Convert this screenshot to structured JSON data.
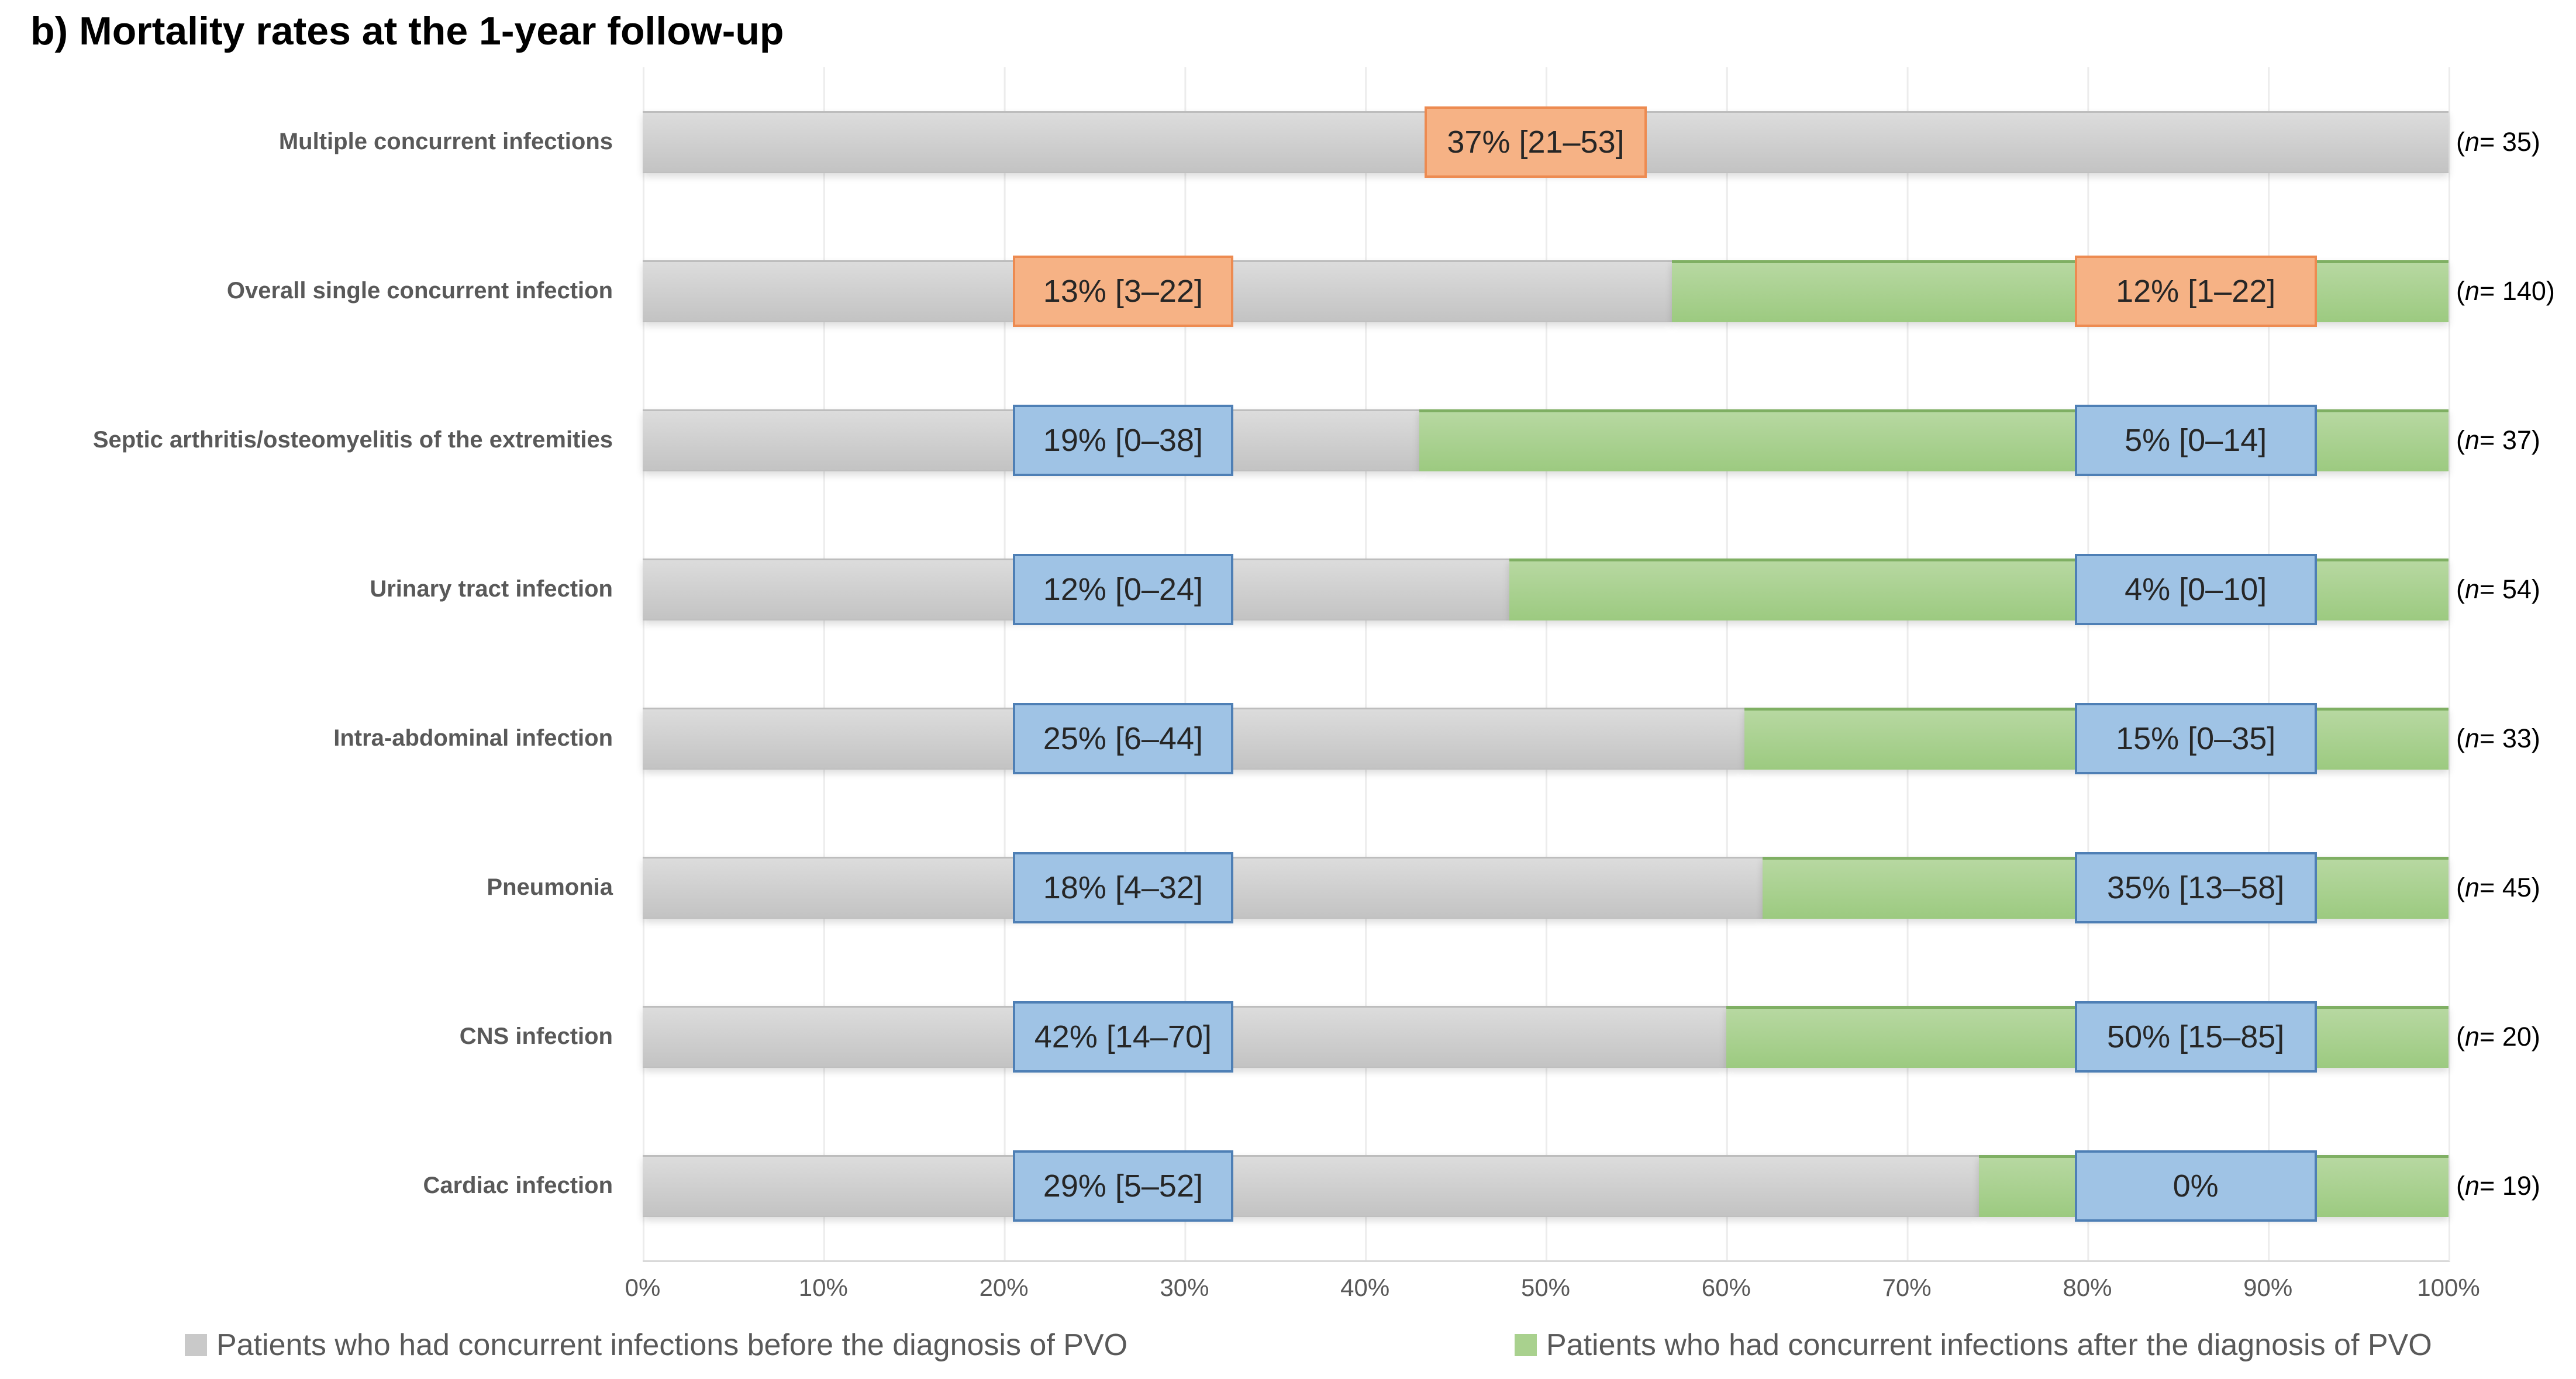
{
  "title": "b) Mortality rates at the 1-year follow-up",
  "legend": {
    "before": {
      "label": "Patients who had concurrent infections before the diagnosis of PVO",
      "color": "#C9C9C9"
    },
    "after": {
      "label": "Patients who had concurrent infections after the diagnosis of PVO",
      "color": "#A9D18E"
    }
  },
  "x_axis": {
    "ticks": [
      "0%",
      "10%",
      "20%",
      "30%",
      "40%",
      "50%",
      "60%",
      "70%",
      "80%",
      "90%",
      "100%"
    ]
  },
  "colors": {
    "bar_before_gray": "#C9C9C9",
    "bar_after_green": "#A9D18E",
    "label_box_blue_fill": "#9FC3E5",
    "label_box_blue_border": "#4E7FB5",
    "label_box_orange_fill": "#F6B285",
    "label_box_orange_border": "#ED8B51",
    "gridline": "#ECECEC",
    "axis_text": "#595959",
    "category_text": "#595959"
  },
  "chart_data": {
    "type": "bar",
    "orientation": "horizontal",
    "stacked": true,
    "title": "b) Mortality rates at the 1-year follow-up",
    "xlim": [
      0,
      100
    ],
    "x_ticks_pct": [
      0,
      10,
      20,
      30,
      40,
      50,
      60,
      70,
      80,
      90,
      100
    ],
    "grid": true,
    "legend_position": "bottom",
    "categories": [
      "Multiple concurrent infections",
      "Overall single concurrent infection",
      "Septic arthritis/osteomyelitis of the extremities",
      "Urinary tract infection",
      "Intra-abdominal infection",
      "Pneumonia",
      "CNS infection",
      "Cardiac infection"
    ],
    "series": [
      {
        "name": "Patients who had concurrent infections before the diagnosis of PVO",
        "style": "gray",
        "values_pct": [
          100,
          57,
          43,
          48,
          61,
          62,
          60,
          74
        ]
      },
      {
        "name": "Patients who had concurrent infections after the diagnosis of PVO",
        "style": "green",
        "values_pct": [
          0,
          43,
          57,
          52,
          39,
          38,
          40,
          26
        ]
      }
    ],
    "rows": [
      {
        "category": "Multiple concurrent infections",
        "n": 35,
        "n_label": "(n = 35)",
        "before_pct": 100,
        "after_pct": 0,
        "labels": [
          {
            "text": "37% [21–53]",
            "style": "orange",
            "left_pct": 43.3,
            "width_pct": 12.3
          }
        ]
      },
      {
        "category": "Overall single concurrent infection",
        "n": 140,
        "n_label": "(n = 140)",
        "before_pct": 57,
        "after_pct": 43,
        "labels": [
          {
            "text": "13% [3–22]",
            "style": "orange",
            "left_pct": 20.5,
            "width_pct": 12.2
          },
          {
            "text": "12% [1–22]",
            "style": "orange",
            "left_pct": 79.3,
            "width_pct": 13.4
          }
        ]
      },
      {
        "category": "Septic arthritis/osteomyelitis of the extremities",
        "n": 37,
        "n_label": "(n = 37)",
        "before_pct": 43,
        "after_pct": 57,
        "labels": [
          {
            "text": "19% [0–38]",
            "style": "blue",
            "left_pct": 20.5,
            "width_pct": 12.2
          },
          {
            "text": "5% [0–14]",
            "style": "blue",
            "left_pct": 79.3,
            "width_pct": 13.4
          }
        ]
      },
      {
        "category": "Urinary tract infection",
        "n": 54,
        "n_label": "(n = 54)",
        "before_pct": 48,
        "after_pct": 52,
        "labels": [
          {
            "text": "12% [0–24]",
            "style": "blue",
            "left_pct": 20.5,
            "width_pct": 12.2
          },
          {
            "text": "4% [0–10]",
            "style": "blue",
            "left_pct": 79.3,
            "width_pct": 13.4
          }
        ]
      },
      {
        "category": "Intra-abdominal infection",
        "n": 33,
        "n_label": "(n = 33)",
        "before_pct": 61,
        "after_pct": 39,
        "labels": [
          {
            "text": "25% [6–44]",
            "style": "blue",
            "left_pct": 20.5,
            "width_pct": 12.2
          },
          {
            "text": "15% [0–35]",
            "style": "blue",
            "left_pct": 79.3,
            "width_pct": 13.4
          }
        ]
      },
      {
        "category": "Pneumonia",
        "n": 45,
        "n_label": "(n = 45)",
        "before_pct": 62,
        "after_pct": 38,
        "labels": [
          {
            "text": "18% [4–32]",
            "style": "blue",
            "left_pct": 20.5,
            "width_pct": 12.2
          },
          {
            "text": "35% [13–58]",
            "style": "blue",
            "left_pct": 79.3,
            "width_pct": 13.4
          }
        ]
      },
      {
        "category": "CNS infection",
        "n": 20,
        "n_label": "(n = 20)",
        "before_pct": 60,
        "after_pct": 40,
        "labels": [
          {
            "text": "42% [14–70]",
            "style": "blue",
            "left_pct": 20.5,
            "width_pct": 12.2
          },
          {
            "text": "50% [15–85]",
            "style": "blue",
            "left_pct": 79.3,
            "width_pct": 13.4
          }
        ]
      },
      {
        "category": "Cardiac infection",
        "n": 19,
        "n_label": "(n = 19)",
        "before_pct": 74,
        "after_pct": 26,
        "labels": [
          {
            "text": "29% [5–52]",
            "style": "blue",
            "left_pct": 20.5,
            "width_pct": 12.2
          },
          {
            "text": "0%",
            "style": "blue",
            "left_pct": 79.3,
            "width_pct": 13.4
          }
        ]
      }
    ]
  }
}
